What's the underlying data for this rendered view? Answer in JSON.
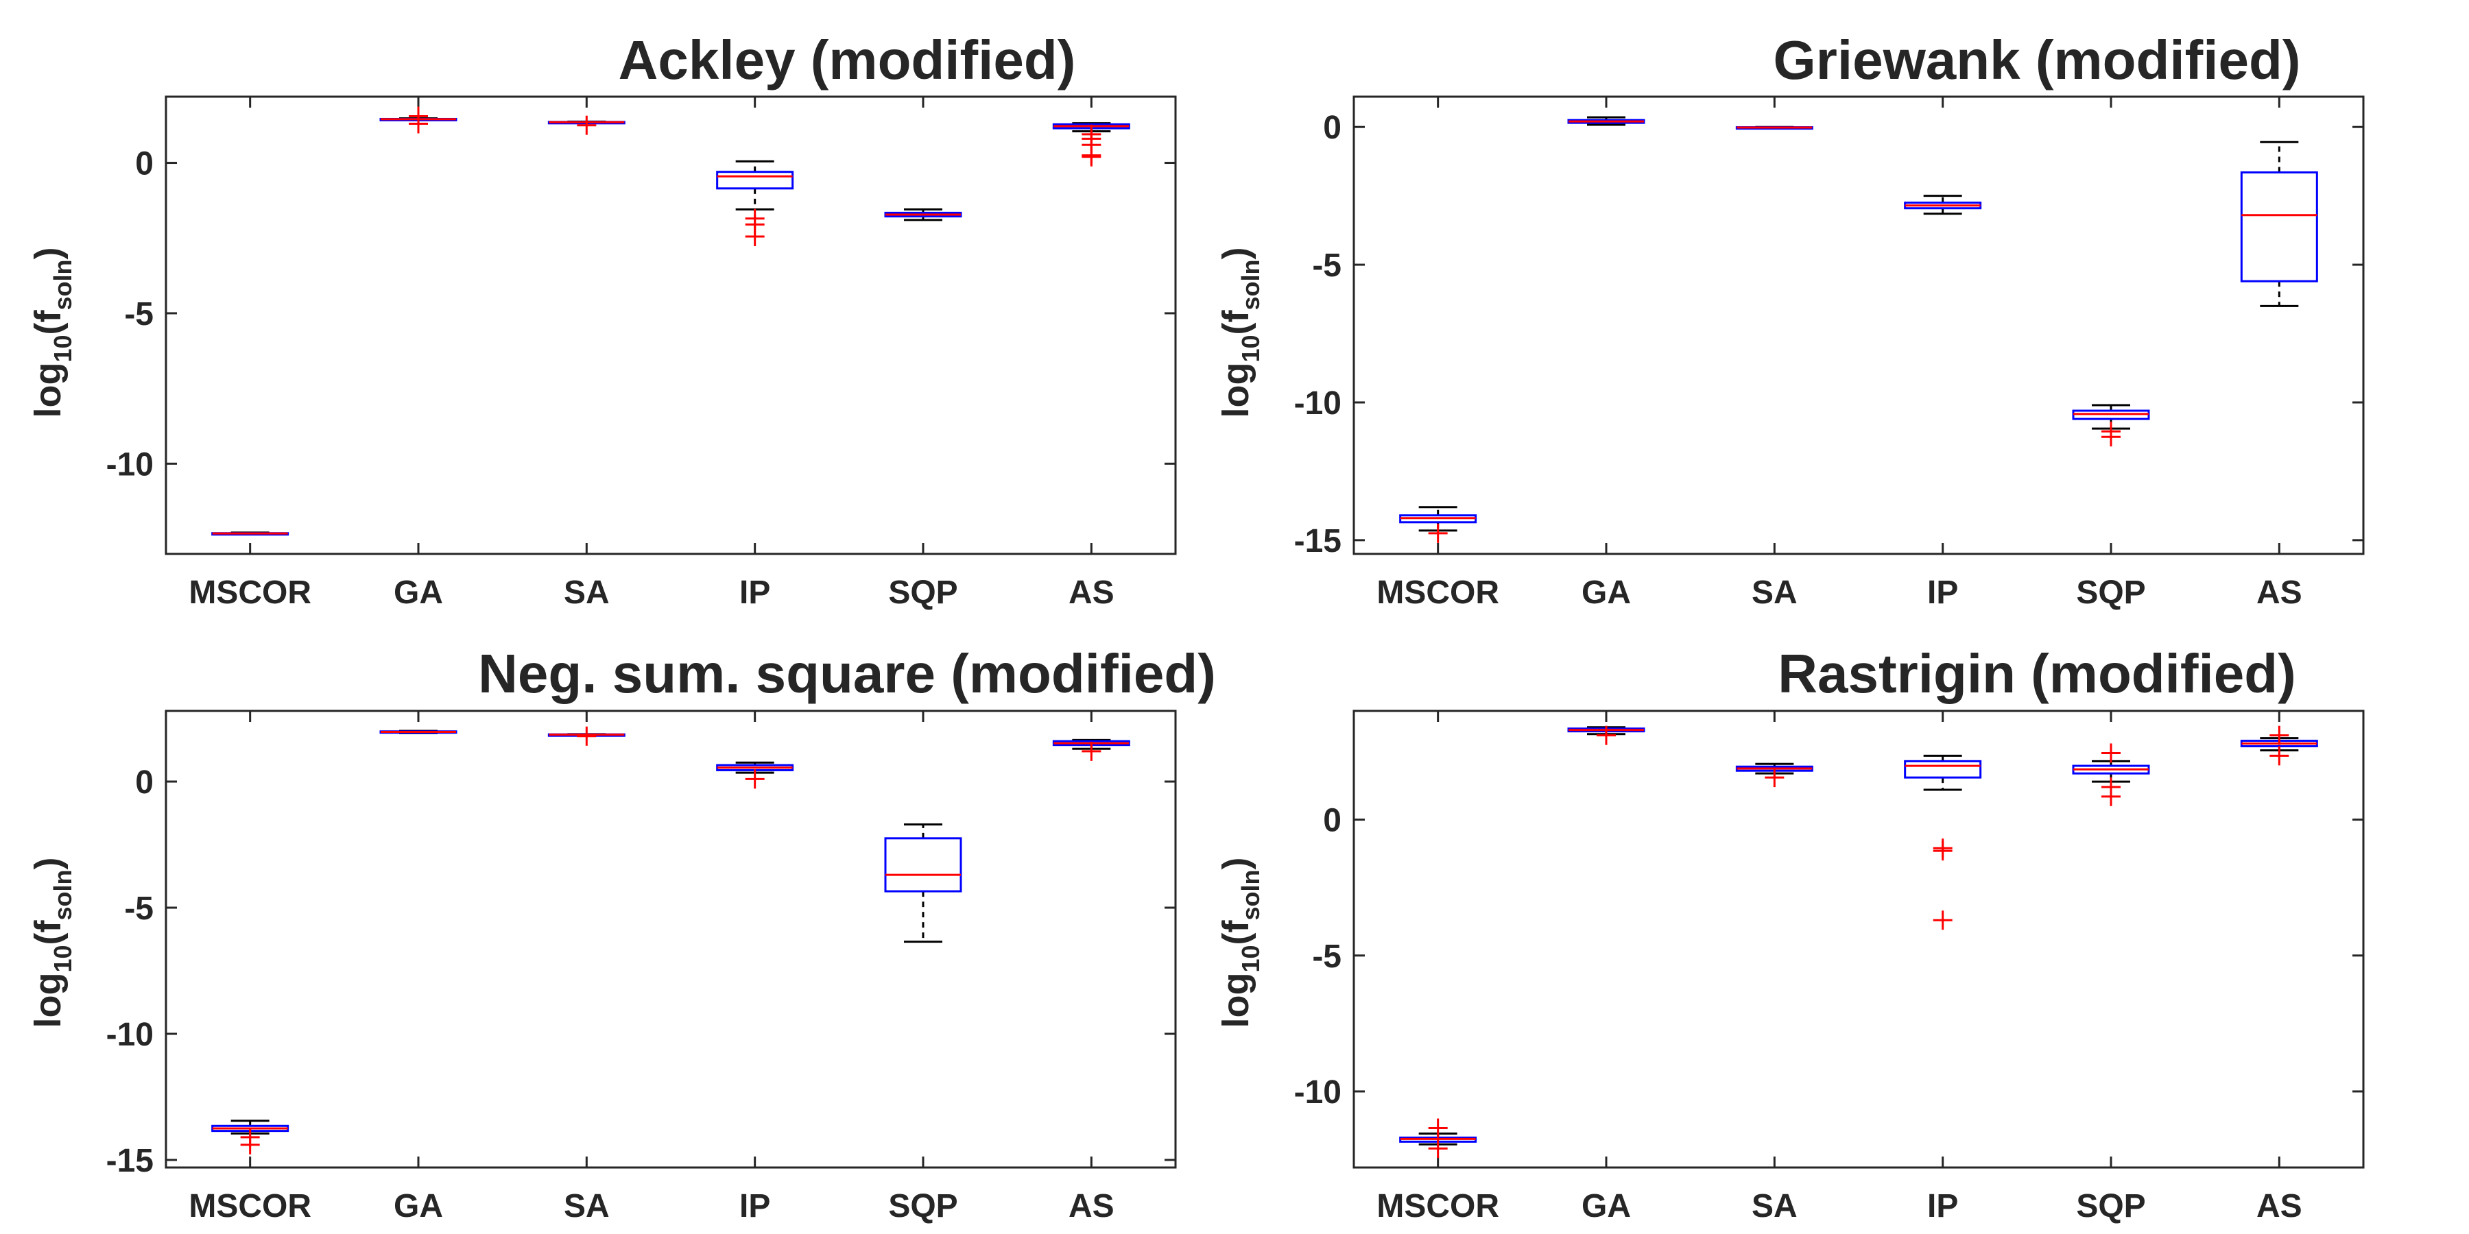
{
  "colors": {
    "box": "#0000ff",
    "median": "#ff0000",
    "outlier": "#ff0000",
    "whisker": "#000000",
    "axes": "#262626"
  },
  "chart_data": [
    {
      "type": "box",
      "title": "Ackley (modified)",
      "ylabel": {
        "base": "log",
        "sub1": "10",
        "mid": "(f",
        "sub2": "soln",
        "end": ")"
      },
      "categories": [
        "MSCOR",
        "GA",
        "SA",
        "IP",
        "SQP",
        "AS"
      ],
      "ylim": [
        -13,
        2.2
      ],
      "yticks": [
        {
          "value": -10,
          "label": "-10"
        },
        {
          "value": -5,
          "label": "-5"
        },
        {
          "value": 0,
          "label": "0"
        }
      ],
      "boxes": [
        {
          "category": "MSCOR",
          "whisker_low": -12.35,
          "q1": -12.33,
          "median": -12.32,
          "q3": -12.31,
          "whisker_high": -12.29,
          "outliers": []
        },
        {
          "category": "GA",
          "whisker_low": 1.42,
          "q1": 1.43,
          "median": 1.45,
          "q3": 1.46,
          "whisker_high": 1.48,
          "outliers": [
            1.3,
            1.55
          ]
        },
        {
          "category": "SA",
          "whisker_low": 1.33,
          "q1": 1.34,
          "median": 1.35,
          "q3": 1.36,
          "whisker_high": 1.37,
          "outliers": [
            1.25
          ]
        },
        {
          "category": "IP",
          "whisker_low": -1.55,
          "q1": -0.85,
          "median": -0.45,
          "q3": -0.3,
          "whisker_high": 0.05,
          "outliers": [
            -1.85,
            -2.05,
            -2.45
          ]
        },
        {
          "category": "SQP",
          "whisker_low": -1.9,
          "q1": -1.78,
          "median": -1.72,
          "q3": -1.66,
          "whisker_high": -1.55,
          "outliers": []
        },
        {
          "category": "AS",
          "whisker_low": 1.05,
          "q1": 1.15,
          "median": 1.22,
          "q3": 1.28,
          "whisker_high": 1.32,
          "outliers": [
            0.95,
            0.8,
            0.6,
            0.25,
            0.2
          ]
        }
      ]
    },
    {
      "type": "box",
      "title": "Griewank (modified)",
      "ylabel": {
        "base": "log",
        "sub1": "10",
        "mid": "(f",
        "sub2": "soln",
        "end": ")"
      },
      "categories": [
        "MSCOR",
        "GA",
        "SA",
        "IP",
        "SQP",
        "AS"
      ],
      "ylim": [
        -15.5,
        1.1
      ],
      "yticks": [
        {
          "value": -15,
          "label": "-15"
        },
        {
          "value": -10,
          "label": "-10"
        },
        {
          "value": -5,
          "label": "-5"
        },
        {
          "value": 0,
          "label": "0"
        }
      ],
      "boxes": [
        {
          "category": "MSCOR",
          "whisker_low": -14.65,
          "q1": -14.35,
          "median": -14.2,
          "q3": -14.1,
          "whisker_high": -13.8,
          "outliers": [
            -14.75
          ]
        },
        {
          "category": "GA",
          "whisker_low": 0.08,
          "q1": 0.15,
          "median": 0.2,
          "q3": 0.25,
          "whisker_high": 0.35,
          "outliers": []
        },
        {
          "category": "SA",
          "whisker_low": -0.05,
          "q1": -0.03,
          "median": -0.02,
          "q3": -0.01,
          "whisker_high": 0.0,
          "outliers": []
        },
        {
          "category": "IP",
          "whisker_low": -3.15,
          "q1": -2.95,
          "median": -2.85,
          "q3": -2.75,
          "whisker_high": -2.5,
          "outliers": []
        },
        {
          "category": "SQP",
          "whisker_low": -10.95,
          "q1": -10.6,
          "median": -10.42,
          "q3": -10.3,
          "whisker_high": -10.1,
          "outliers": [
            -11.05,
            -11.25
          ]
        },
        {
          "category": "AS",
          "whisker_low": -6.5,
          "q1": -5.6,
          "median": -3.2,
          "q3": -1.65,
          "whisker_high": -0.55,
          "outliers": []
        }
      ]
    },
    {
      "type": "box",
      "title": "Neg. sum. square (modified)",
      "ylabel": {
        "base": "log",
        "sub1": "10",
        "mid": "(f",
        "sub2": "soln",
        "end": ")"
      },
      "categories": [
        "MSCOR",
        "GA",
        "SA",
        "IP",
        "SQP",
        "AS"
      ],
      "ylim": [
        -15.3,
        2.8
      ],
      "yticks": [
        {
          "value": -15,
          "label": "-15"
        },
        {
          "value": -10,
          "label": "-10"
        },
        {
          "value": -5,
          "label": "-5"
        },
        {
          "value": 0,
          "label": "0"
        }
      ],
      "boxes": [
        {
          "category": "MSCOR",
          "whisker_low": -13.95,
          "q1": -13.85,
          "median": -13.75,
          "q3": -13.65,
          "whisker_high": -13.45,
          "outliers": [
            -14.1,
            -14.4
          ]
        },
        {
          "category": "GA",
          "whisker_low": 1.92,
          "q1": 1.95,
          "median": 1.97,
          "q3": 1.99,
          "whisker_high": 2.01,
          "outliers": []
        },
        {
          "category": "SA",
          "whisker_low": 1.84,
          "q1": 1.85,
          "median": 1.86,
          "q3": 1.87,
          "whisker_high": 1.88,
          "outliers": [
            1.8
          ]
        },
        {
          "category": "IP",
          "whisker_low": 0.35,
          "q1": 0.45,
          "median": 0.55,
          "q3": 0.65,
          "whisker_high": 0.75,
          "outliers": [
            0.1
          ]
        },
        {
          "category": "SQP",
          "whisker_low": -6.35,
          "q1": -4.35,
          "median": -3.7,
          "q3": -2.25,
          "whisker_high": -1.7,
          "outliers": []
        },
        {
          "category": "AS",
          "whisker_low": 1.3,
          "q1": 1.45,
          "median": 1.52,
          "q3": 1.6,
          "whisker_high": 1.65,
          "outliers": [
            1.2
          ]
        }
      ]
    },
    {
      "type": "box",
      "title": "Rastrigin (modified)",
      "ylabel": {
        "base": "log",
        "sub1": "10",
        "mid": "(f",
        "sub2": "soln",
        "end": ")"
      },
      "categories": [
        "MSCOR",
        "GA",
        "SA",
        "IP",
        "SQP",
        "AS"
      ],
      "ylim": [
        -12.8,
        4
      ],
      "yticks": [
        {
          "value": -10,
          "label": "-10"
        },
        {
          "value": -5,
          "label": "-5"
        },
        {
          "value": 0,
          "label": "0"
        }
      ],
      "boxes": [
        {
          "category": "MSCOR",
          "whisker_low": -11.95,
          "q1": -11.85,
          "median": -11.75,
          "q3": -11.7,
          "whisker_high": -11.55,
          "outliers": [
            -11.35,
            -12.1
          ]
        },
        {
          "category": "GA",
          "whisker_low": 3.15,
          "q1": 3.25,
          "median": 3.3,
          "q3": 3.35,
          "whisker_high": 3.4,
          "outliers": [
            3.1
          ]
        },
        {
          "category": "SA",
          "whisker_low": 1.7,
          "q1": 1.8,
          "median": 1.88,
          "q3": 1.95,
          "whisker_high": 2.05,
          "outliers": [
            1.55
          ]
        },
        {
          "category": "IP",
          "whisker_low": 1.1,
          "q1": 1.55,
          "median": 1.98,
          "q3": 2.15,
          "whisker_high": 2.35,
          "outliers": [
            -1.05,
            -1.15,
            -3.7
          ]
        },
        {
          "category": "SQP",
          "whisker_low": 1.4,
          "q1": 1.7,
          "median": 1.85,
          "q3": 1.98,
          "whisker_high": 2.15,
          "outliers": [
            1.2,
            0.85,
            2.45
          ]
        },
        {
          "category": "AS",
          "whisker_low": 2.55,
          "q1": 2.7,
          "median": 2.8,
          "q3": 2.9,
          "whisker_high": 3.0,
          "outliers": [
            3.1,
            2.35
          ]
        }
      ]
    }
  ]
}
